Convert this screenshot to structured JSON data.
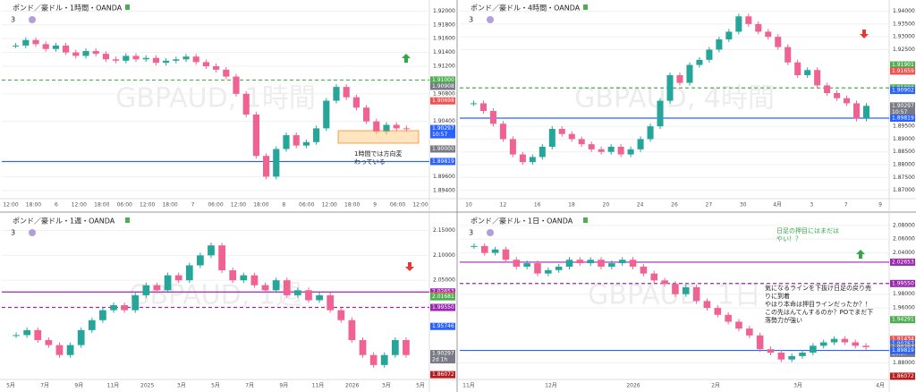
{
  "panels": [
    {
      "title": "ポンド／豪ドル・1時間・OANDA",
      "indicator": "3",
      "watermark": "GBPAUD, 1時間",
      "ylim": [
        1.8928,
        1.9216
      ],
      "yticks": [
        {
          "value": 1.92,
          "label": "1.92000"
        },
        {
          "value": 1.918,
          "label": "1.91800"
        },
        {
          "value": 1.916,
          "label": "1.91600"
        },
        {
          "value": 1.914,
          "label": "1.91400"
        },
        {
          "value": 1.912,
          "label": "1.91200"
        },
        {
          "value": 1.908,
          "label": "1.90800"
        },
        {
          "value": 1.904,
          "label": "1.90400"
        },
        {
          "value": 1.898,
          "label": "1.89800"
        },
        {
          "value": 1.896,
          "label": "1.89600"
        },
        {
          "value": 1.894,
          "label": "1.89400"
        }
      ],
      "xlabels": [
        "12:00",
        "18:00",
        "6",
        "12:00",
        "18:00",
        "06:00",
        "12:00",
        "18:00",
        "7",
        "06:00",
        "12:00",
        "18:00",
        "8",
        "06:00",
        "12:00",
        "18:00",
        "9",
        "06:00",
        "12:00"
      ],
      "tags": [
        {
          "value": 1.91,
          "label": "1.91000",
          "color": "#4caf50"
        },
        {
          "value": 1.90908,
          "label": "1.90908",
          "color": "#787b86"
        },
        {
          "value": 1.90698,
          "label": "1.90698",
          "color": "#ef5350"
        },
        {
          "value": 1.90297,
          "label": "1.90297",
          "color": "#2962ff",
          "sub": "10:57"
        },
        {
          "value": 1.9,
          "label": "1.90000",
          "color": "#787b86"
        },
        {
          "value": 1.89819,
          "label": "1.89819",
          "color": "#2962ff"
        }
      ],
      "hlines": [
        {
          "value": 1.91,
          "color": "#4caf50",
          "dash": true
        },
        {
          "value": 1.89819,
          "color": "#2962ff",
          "dash": false
        }
      ],
      "annotation": [
        "1時間では方向変",
        "わっている"
      ],
      "up_color": "#26a69a",
      "down_color": "#f06292",
      "closes": [
        1.915,
        1.9158,
        1.9152,
        1.9145,
        1.915,
        1.914,
        1.9135,
        1.9142,
        1.9138,
        1.913,
        1.9128,
        1.9135,
        1.913,
        1.9132,
        1.9125,
        1.9128,
        1.913,
        1.9134,
        1.9126,
        1.912,
        1.9115,
        1.9105,
        1.908,
        1.905,
        1.899,
        1.896,
        1.9,
        1.902,
        1.9005,
        1.901,
        1.903,
        1.907,
        1.909,
        1.9075,
        1.906,
        1.904,
        1.9025,
        1.9035,
        1.903,
        1.9029
      ]
    },
    {
      "title": "ポンド／豪ドル・4時間・OANDA",
      "indicator": "3",
      "watermark": "GBPAUD, 4時間",
      "ylim": [
        1.8667,
        1.9444
      ],
      "yticks": [
        {
          "value": 1.94,
          "label": "1.94000"
        },
        {
          "value": 1.935,
          "label": "1.93500"
        },
        {
          "value": 1.93,
          "label": "1.93000"
        },
        {
          "value": 1.925,
          "label": "1.92500"
        },
        {
          "value": 1.895,
          "label": "1.89500"
        },
        {
          "value": 1.89,
          "label": "1.89000"
        },
        {
          "value": 1.885,
          "label": "1.88500"
        },
        {
          "value": 1.88,
          "label": "1.88000"
        },
        {
          "value": 1.875,
          "label": "1.87500"
        },
        {
          "value": 1.87,
          "label": "1.87000"
        }
      ],
      "xlabels": [
        "10",
        "12",
        "16",
        "18",
        "20",
        "24",
        "26",
        "27",
        "30",
        "4月",
        "3",
        "7",
        "9"
      ],
      "tags": [
        {
          "value": 1.91901,
          "label": "1.91901",
          "color": "#4caf50"
        },
        {
          "value": 1.91659,
          "label": "1.91659",
          "color": "#ef5350"
        },
        {
          "value": 1.91,
          "label": "1.91000",
          "color": "#4caf50"
        },
        {
          "value": 1.90902,
          "label": "1.90902",
          "color": "#2962ff"
        },
        {
          "value": 1.90297,
          "label": "1.90297",
          "color": "#787b86",
          "sub": "10:57"
        },
        {
          "value": 1.89819,
          "label": "1.89819",
          "color": "#2962ff"
        }
      ],
      "hlines": [
        {
          "value": 1.91,
          "color": "#4caf50",
          "dash": true
        },
        {
          "value": 1.89819,
          "color": "#2962ff",
          "dash": false
        }
      ],
      "up_color": "#26a69a",
      "down_color": "#f06292",
      "closes": [
        1.904,
        1.901,
        1.896,
        1.89,
        1.884,
        1.881,
        1.883,
        1.887,
        1.894,
        1.892,
        1.89,
        1.888,
        1.886,
        1.885,
        1.887,
        1.884,
        1.886,
        1.89,
        1.895,
        1.905,
        1.915,
        1.912,
        1.919,
        1.921,
        1.925,
        1.929,
        1.932,
        1.938,
        1.935,
        1.932,
        1.93,
        1.926,
        1.92,
        1.915,
        1.917,
        1.911,
        1.908,
        1.906,
        1.904,
        1.898,
        1.903
      ]
    },
    {
      "title": "ポンド／豪ドル・1週・OANDA",
      "indicator": "3",
      "watermark": "GBPAUD, 1週",
      "ylim": [
        1.851,
        2.185
      ],
      "yticks": [
        {
          "value": 2.15,
          "label": "2.15000"
        },
        {
          "value": 2.1,
          "label": "2.10000"
        },
        {
          "value": 2.05,
          "label": "2.05000"
        }
      ],
      "xlabels": [
        "5月",
        "7月",
        "9月",
        "11月",
        "2025",
        "3月",
        "5月",
        "7月",
        "9月",
        "11月",
        "2026",
        "3月",
        "5月"
      ],
      "tags": [
        {
          "value": 2.02653,
          "label": "2.02653",
          "color": "#9c27b0"
        },
        {
          "value": 2.0193,
          "label": "2.01930",
          "color": "#ef5350"
        },
        {
          "value": 2.01681,
          "label": "2.01681",
          "color": "#4caf50"
        },
        {
          "value": 1.9955,
          "label": "1.99550",
          "color": "#9c27b0"
        },
        {
          "value": 1.95746,
          "label": "1.95746",
          "color": "#2962ff"
        },
        {
          "value": 1.90297,
          "label": "1.90297",
          "color": "#787b86",
          "sub": "2d 1h"
        },
        {
          "value": 1.86072,
          "label": "1.86072",
          "color": "#b71c1c"
        }
      ],
      "hlines": [
        {
          "value": 2.02653,
          "color": "#9c27b0",
          "dash": false
        },
        {
          "value": 1.9955,
          "color": "#9c27b0",
          "dash": true
        }
      ],
      "up_color": "#26a69a",
      "down_color": "#f06292",
      "closes": [
        1.94,
        1.95,
        1.93,
        1.92,
        1.9,
        1.92,
        1.95,
        1.97,
        1.99,
        2.0,
        1.99,
        2.02,
        2.04,
        2.03,
        2.06,
        2.05,
        2.08,
        2.1,
        2.12,
        2.07,
        2.05,
        2.06,
        2.04,
        2.03,
        2.05,
        2.02,
        2.03,
        2.01,
        2.02,
        1.99,
        1.97,
        1.93,
        1.9,
        1.88,
        1.9,
        1.93,
        1.9
      ]
    },
    {
      "title": "ポンド／豪ドル・1日・OANDA",
      "indicator": "3",
      "watermark": "GBPAUD, 1日",
      "ylim": [
        1.856,
        2.098
      ],
      "yticks": [
        {
          "value": 2.08,
          "label": "2.08000"
        },
        {
          "value": 2.06,
          "label": "2.06000"
        },
        {
          "value": 2.04,
          "label": "2.04000"
        },
        {
          "value": 1.98,
          "label": "1.98000"
        },
        {
          "value": 1.96,
          "label": "1.96000"
        },
        {
          "value": 1.88,
          "label": "1.88000"
        }
      ],
      "xlabels": [
        "11月",
        "12月",
        "2026",
        "2月",
        "3月",
        "4月"
      ],
      "tags": [
        {
          "value": 2.02653,
          "label": "2.02653",
          "color": "#9c27b0"
        },
        {
          "value": 1.9955,
          "label": "1.99550",
          "color": "#9c27b0"
        },
        {
          "value": 1.94291,
          "label": "1.94291",
          "color": "#4caf50"
        },
        {
          "value": 1.91434,
          "label": "1.91434",
          "color": "#ef5350"
        },
        {
          "value": 1.90767,
          "label": "1.90767",
          "color": "#2962ff"
        },
        {
          "value": 1.90297,
          "label": "1.90297",
          "color": "#787b86",
          "sub": "10:57"
        },
        {
          "value": 1.89819,
          "label": "1.89819",
          "color": "#2962ff"
        },
        {
          "value": 1.86072,
          "label": "1.86072",
          "color": "#b71c1c"
        }
      ],
      "hlines": [
        {
          "value": 2.02653,
          "color": "#9c27b0",
          "dash": false
        },
        {
          "value": 1.9955,
          "color": "#9c27b0",
          "dash": true
        },
        {
          "value": 1.89819,
          "color": "#2962ff",
          "dash": false
        }
      ],
      "annotation": [
        "気になるラインを下抜け日足の戻り売",
        "りに到着",
        "やはり本命は押目ラインだったか？！",
        "この先はんてんするのか？POでまだ下",
        "落勢力が強い"
      ],
      "annotation2": [
        "日足の押目にはまだは",
        "やい！？"
      ],
      "up_color": "#26a69a",
      "down_color": "#f06292",
      "closes": [
        2.05,
        2.04,
        2.045,
        2.03,
        2.02,
        2.025,
        2.01,
        2.015,
        2.02,
        2.03,
        2.025,
        2.03,
        2.02,
        2.025,
        2.03,
        2.02,
        2.01,
        2.0,
        1.995,
        1.98,
        1.99,
        1.97,
        1.96,
        1.95,
        1.94,
        1.93,
        1.92,
        1.9,
        1.895,
        1.885,
        1.89,
        1.895,
        1.905,
        1.91,
        1.915,
        1.91,
        1.905,
        1.903
      ]
    }
  ]
}
